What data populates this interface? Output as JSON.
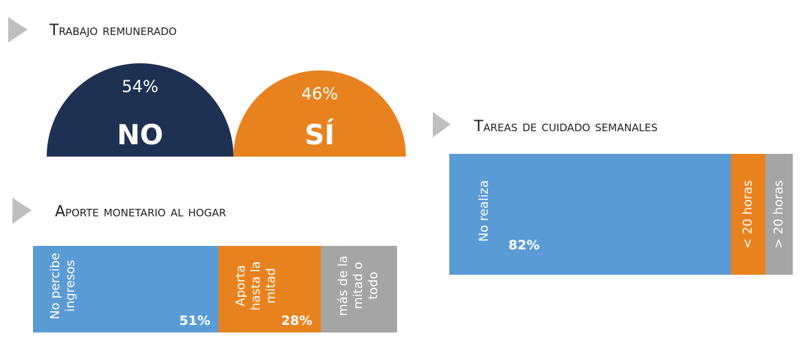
{
  "chart_data": [
    {
      "type": "semicircle",
      "title": "Trabajo remunerado",
      "categories": [
        "NO",
        "SÍ"
      ],
      "values": [
        54,
        46
      ],
      "value_labels": [
        "54%",
        "46%"
      ],
      "colors": [
        "#1f3153",
        "#e8821e"
      ]
    },
    {
      "type": "stacked-bar",
      "title": "Aporte monetario al hogar",
      "categories": [
        "No percibe ingresos",
        "Aporta hasta la mitad",
        "más de la mitad o todo"
      ],
      "values": [
        51,
        28,
        21
      ],
      "value_labels": [
        "51%",
        "28%",
        null
      ],
      "colors": [
        "#5b9bd5",
        "#e8821e",
        "#a5a5a5"
      ]
    },
    {
      "type": "stacked-bar",
      "title": "Tareas de cuidado semanales",
      "categories": [
        "No realiza",
        "< 20 horas",
        "> 20 horas"
      ],
      "values": [
        82,
        10,
        8
      ],
      "value_labels": [
        "82%",
        null,
        null
      ],
      "colors": [
        "#5b9bd5",
        "#e8821e",
        "#a5a5a5"
      ]
    }
  ]
}
